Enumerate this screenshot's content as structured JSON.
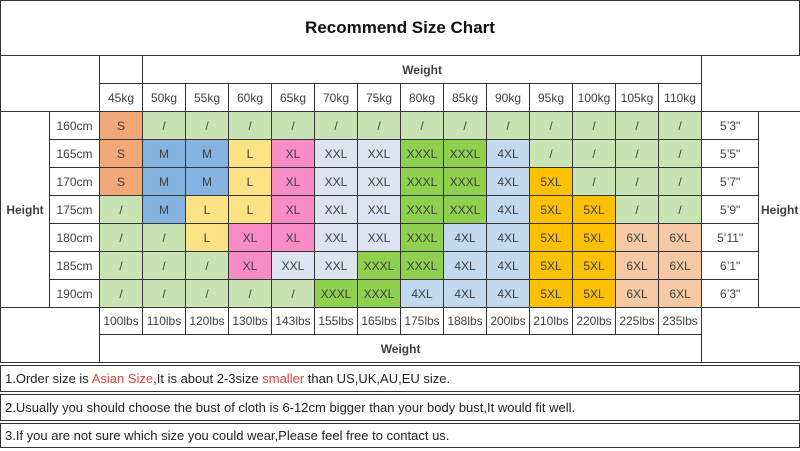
{
  "title": "Recommend Size Chart",
  "table": {
    "weight_header_top": "Weight",
    "weight_footer": "Weight",
    "height_header_left": "Height",
    "height_header_right": "Height",
    "kg_columns": [
      "45kg",
      "50kg",
      "55kg",
      "60kg",
      "65kg",
      "70kg",
      "75kg",
      "80kg",
      "85kg",
      "90kg",
      "95kg",
      "100kg",
      "105kg",
      "110kg"
    ],
    "lbs_columns": [
      "100lbs",
      "110lbs",
      "120lbs",
      "130lbs",
      "143lbs",
      "155lbs",
      "165lbs",
      "175lbs",
      "188lbs",
      "200lbs",
      "210lbs",
      "220lbs",
      "225lbs",
      "235lbs"
    ],
    "rows": [
      {
        "height_cm": "160cm",
        "height_ft": "5’3\"",
        "sizes": [
          "S",
          "/",
          "/",
          "/",
          "/",
          "/",
          "/",
          "/",
          "/",
          "/",
          "/",
          "/",
          "/",
          "/"
        ]
      },
      {
        "height_cm": "165cm",
        "height_ft": "5’5\"",
        "sizes": [
          "S",
          "M",
          "M",
          "L",
          "XL",
          "XXL",
          "XXL",
          "XXXL",
          "XXXL",
          "4XL",
          "/",
          "/",
          "/",
          "/"
        ]
      },
      {
        "height_cm": "170cm",
        "height_ft": "5’7\"",
        "sizes": [
          "S",
          "M",
          "M",
          "L",
          "XL",
          "XXL",
          "XXL",
          "XXXL",
          "XXXL",
          "4XL",
          "5XL",
          "/",
          "/",
          "/"
        ]
      },
      {
        "height_cm": "175cm",
        "height_ft": "5’9\"",
        "sizes": [
          "/",
          "M",
          "L",
          "L",
          "XL",
          "XXL",
          "XXL",
          "XXXL",
          "XXXL",
          "4XL",
          "5XL",
          "5XL",
          "/",
          "/"
        ]
      },
      {
        "height_cm": "180cm",
        "height_ft": "5’11\"",
        "sizes": [
          "/",
          "/",
          "L",
          "XL",
          "XL",
          "XXL",
          "XXL",
          "XXXL",
          "4XL",
          "4XL",
          "5XL",
          "5XL",
          "6XL",
          "6XL"
        ]
      },
      {
        "height_cm": "185cm",
        "height_ft": "6’1\"",
        "sizes": [
          "/",
          "/",
          "/",
          "XL",
          "XXL",
          "XXL",
          "XXXL",
          "XXXL",
          "4XL",
          "4XL",
          "5XL",
          "5XL",
          "6XL",
          "6XL"
        ]
      },
      {
        "height_cm": "190cm",
        "height_ft": "6’3\"",
        "sizes": [
          "/",
          "/",
          "/",
          "/",
          "/",
          "XXXL",
          "XXXL",
          "4XL",
          "4XL",
          "4XL",
          "5XL",
          "5XL",
          "6XL",
          "6XL"
        ]
      }
    ],
    "size_colors": {
      "S": "#F1A876",
      "M": "#85B3DF",
      "L": "#FBE284",
      "XL": "#F88CC4",
      "XXL": "#DCE3F1",
      "XXXL": "#8FD14F",
      "4XL": "#C2D9EF",
      "5XL": "#FDC101",
      "6XL": "#F4C9A4",
      "/": "#C9E3B5"
    }
  },
  "notes": {
    "note1": {
      "part1": "1.Order size is ",
      "red1": "Asian Size",
      "part2": ",It is about 2-3size ",
      "red2": "smaller",
      "part3": " than US,UK,AU,EU size."
    },
    "note2": "2.Usually you should choose the bust of cloth is 6-12cm bigger than your body bust,It would fit well.",
    "note3": "3.If you are not sure which size you could wear,Please feel free to contact us."
  },
  "colors": {
    "red_text": "#D9463E",
    "border": "#333333"
  }
}
